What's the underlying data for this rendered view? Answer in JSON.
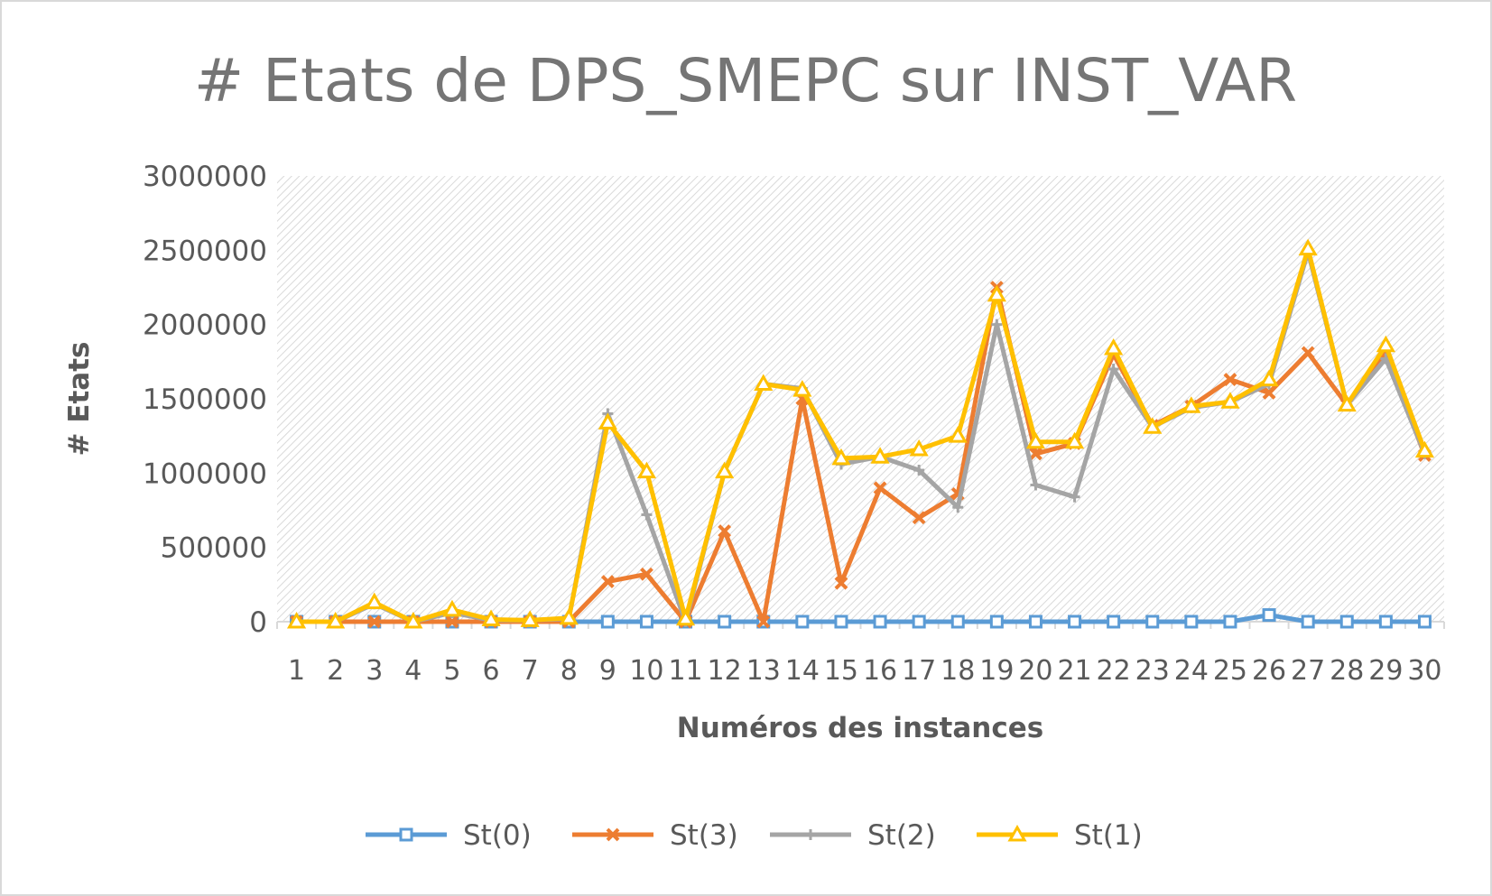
{
  "chart_data": {
    "type": "line",
    "title": "# Etats de DPS_SMEPC sur INST_VAR",
    "xlabel": "Numéros des instances",
    "ylabel": "# Etats",
    "ylim": [
      0,
      3000000
    ],
    "yticks": [
      "0",
      "500000",
      "1000000",
      "1500000",
      "2000000",
      "2500000",
      "3000000"
    ],
    "categories": [
      "1",
      "2",
      "3",
      "4",
      "5",
      "6",
      "7",
      "8",
      "9",
      "10",
      "11",
      "12",
      "13",
      "14",
      "15",
      "16",
      "17",
      "18",
      "19",
      "20",
      "21",
      "22",
      "23",
      "24",
      "25",
      "26",
      "27",
      "28",
      "29",
      "30"
    ],
    "grid": false,
    "legend_position": "bottom",
    "series": [
      {
        "name": "St(0)",
        "color": "#5B9BD5",
        "marker": "square",
        "values": [
          0,
          0,
          0,
          0,
          0,
          0,
          0,
          0,
          0,
          0,
          0,
          0,
          0,
          0,
          0,
          0,
          0,
          0,
          0,
          0,
          0,
          0,
          0,
          0,
          0,
          45000,
          0,
          0,
          0,
          0
        ]
      },
      {
        "name": "St(3)",
        "color": "#ED7D31",
        "marker": "x",
        "values": [
          0,
          0,
          0,
          0,
          0,
          0,
          0,
          0,
          270000,
          320000,
          0,
          610000,
          0,
          1500000,
          260000,
          900000,
          700000,
          860000,
          2250000,
          1130000,
          1200000,
          1800000,
          1320000,
          1450000,
          1630000,
          1540000,
          1810000,
          1460000,
          1810000,
          1120000
        ]
      },
      {
        "name": "St(2)",
        "color": "#A5A5A5",
        "marker": "plus",
        "values": [
          0,
          0,
          120000,
          0,
          60000,
          10000,
          10000,
          20000,
          1400000,
          720000,
          0,
          1010000,
          1600000,
          1570000,
          1060000,
          1110000,
          1020000,
          770000,
          2000000,
          920000,
          840000,
          1700000,
          1310000,
          1440000,
          1480000,
          1600000,
          2490000,
          1460000,
          1770000,
          1130000
        ]
      },
      {
        "name": "St(1)",
        "color": "#FFC000",
        "marker": "triangle",
        "values": [
          0,
          0,
          130000,
          0,
          80000,
          15000,
          10000,
          25000,
          1340000,
          1010000,
          20000,
          1010000,
          1600000,
          1560000,
          1100000,
          1110000,
          1160000,
          1250000,
          2200000,
          1210000,
          1210000,
          1840000,
          1310000,
          1450000,
          1480000,
          1630000,
          2510000,
          1460000,
          1860000,
          1150000
        ]
      }
    ]
  }
}
